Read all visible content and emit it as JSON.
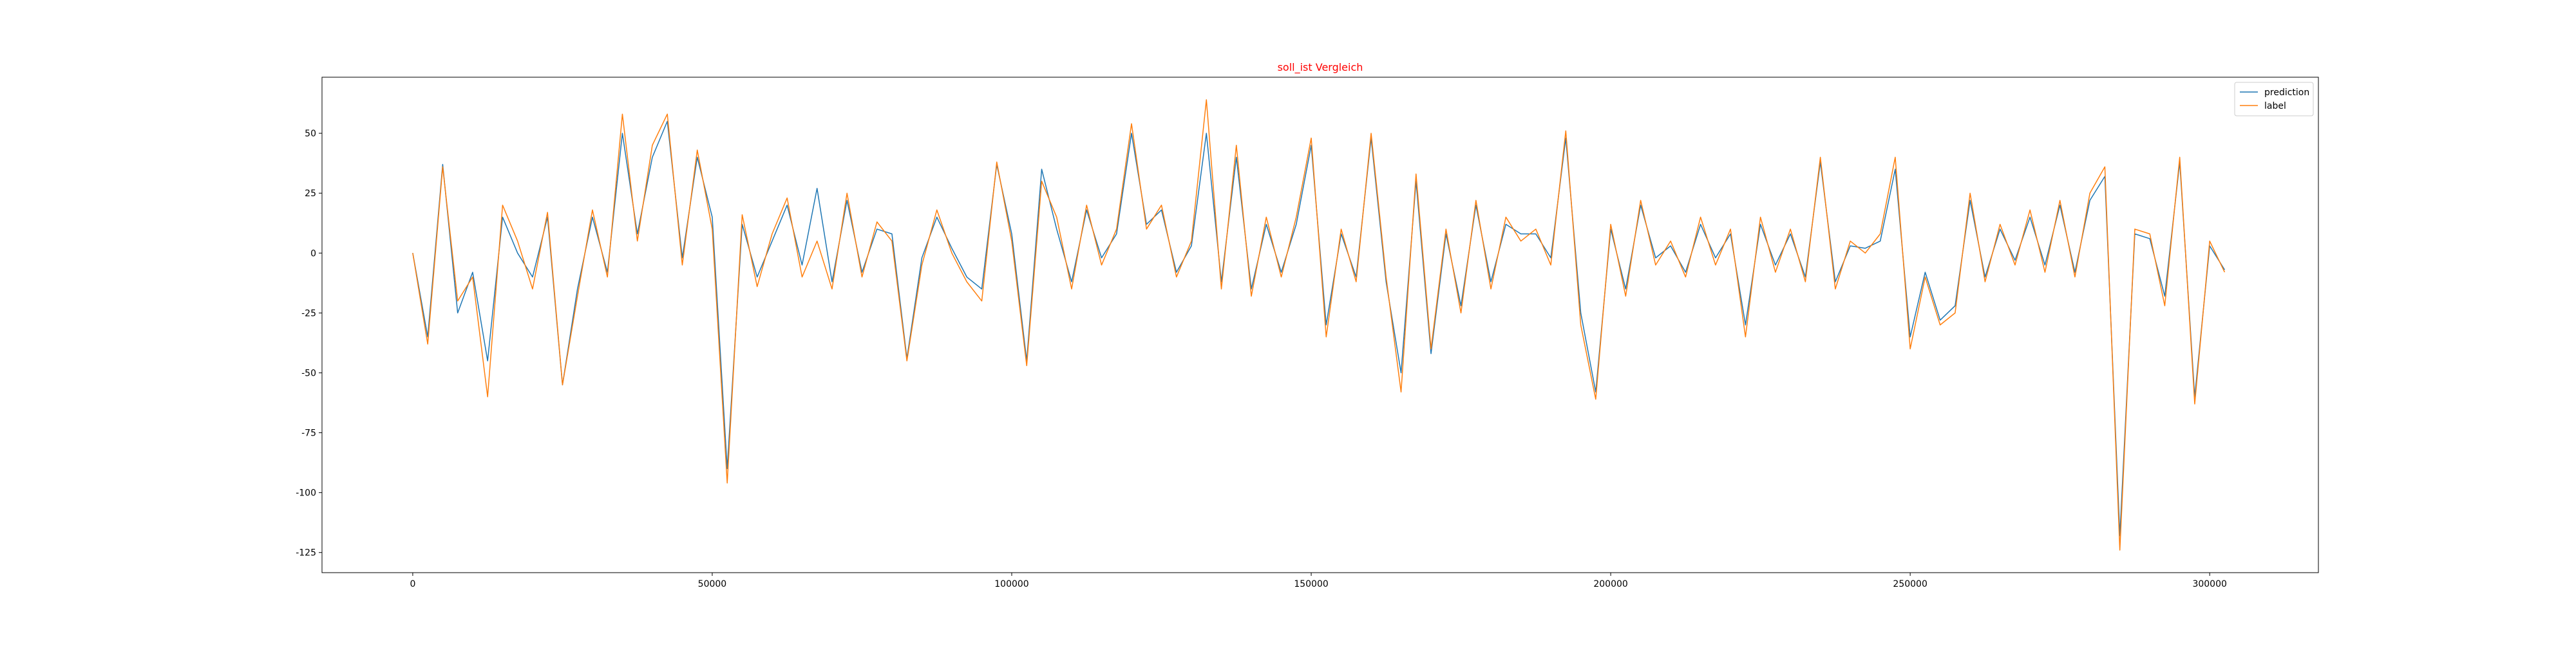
{
  "chart_data": {
    "type": "line",
    "title": "soll_ist Vergleich",
    "title_color": "#ff0000",
    "x": [
      0,
      2500,
      5000,
      7500,
      10000,
      12500,
      15000,
      17500,
      20000,
      22500,
      25000,
      27500,
      30000,
      32500,
      35000,
      37500,
      40000,
      42500,
      45000,
      47500,
      50000,
      52500,
      55000,
      57500,
      60000,
      62500,
      65000,
      67500,
      70000,
      72500,
      75000,
      77500,
      80000,
      82500,
      85000,
      87500,
      90000,
      92500,
      95000,
      97500,
      100000,
      102500,
      105000,
      107500,
      110000,
      112500,
      115000,
      117500,
      120000,
      122500,
      125000,
      127500,
      130000,
      132500,
      135000,
      137500,
      140000,
      142500,
      145000,
      147500,
      150000,
      152500,
      155000,
      157500,
      160000,
      162500,
      165000,
      167500,
      170000,
      172500,
      175000,
      177500,
      180000,
      182500,
      185000,
      187500,
      190000,
      192500,
      195000,
      197500,
      200000,
      202500,
      205000,
      207500,
      210000,
      212500,
      215000,
      217500,
      220000,
      222500,
      225000,
      227500,
      230000,
      232500,
      235000,
      237500,
      240000,
      242500,
      245000,
      247500,
      250000,
      252500,
      255000,
      257500,
      260000,
      262500,
      265000,
      267500,
      270000,
      272500,
      275000,
      277500,
      280000,
      282500,
      285000,
      287500,
      290000,
      292500,
      295000,
      297500,
      300000,
      302500
    ],
    "series": [
      {
        "name": "prediction",
        "color": "#1f77b4",
        "values": [
          0,
          -35,
          37,
          -25,
          -8,
          -45,
          15,
          0,
          -10,
          15,
          -55,
          -15,
          15,
          -8,
          50,
          8,
          40,
          55,
          -2,
          40,
          15,
          -90,
          12,
          -10,
          5,
          20,
          -5,
          27,
          -12,
          22,
          -8,
          10,
          8,
          -44,
          -2,
          15,
          2,
          -10,
          -15,
          37,
          8,
          -45,
          35,
          10,
          -12,
          18,
          -2,
          8,
          50,
          12,
          18,
          -8,
          3,
          50,
          -12,
          40,
          -15,
          12,
          -8,
          12,
          45,
          -30,
          8,
          -10,
          48,
          -12,
          -50,
          30,
          -42,
          8,
          -22,
          20,
          -12,
          12,
          8,
          8,
          -2,
          48,
          -25,
          -58,
          10,
          -15,
          20,
          -2,
          3,
          -8,
          12,
          -2,
          8,
          -30,
          12,
          -5,
          8,
          -10,
          38,
          -12,
          3,
          2,
          5,
          35,
          -35,
          -8,
          -28,
          -22,
          22,
          -10,
          10,
          -3,
          15,
          -5,
          20,
          -8,
          22,
          32,
          -118,
          8,
          6,
          -18,
          38,
          -60,
          3,
          -7
        ]
      },
      {
        "name": "label",
        "color": "#ff7f0e",
        "values": [
          0,
          -38,
          36,
          -20,
          -10,
          -60,
          20,
          5,
          -15,
          17,
          -55,
          -18,
          18,
          -10,
          58,
          5,
          45,
          58,
          -5,
          43,
          10,
          -96,
          16,
          -14,
          8,
          23,
          -10,
          5,
          -15,
          25,
          -10,
          13,
          5,
          -45,
          -5,
          18,
          0,
          -12,
          -20,
          38,
          5,
          -47,
          30,
          15,
          -15,
          20,
          -5,
          10,
          54,
          10,
          20,
          -10,
          5,
          64,
          -15,
          45,
          -18,
          15,
          -10,
          15,
          48,
          -35,
          10,
          -12,
          50,
          -10,
          -58,
          33,
          -40,
          10,
          -25,
          22,
          -15,
          15,
          5,
          10,
          -5,
          51,
          -30,
          -61,
          12,
          -18,
          22,
          -5,
          5,
          -10,
          15,
          -5,
          10,
          -35,
          15,
          -8,
          10,
          -12,
          40,
          -15,
          5,
          0,
          8,
          40,
          -40,
          -10,
          -30,
          -25,
          25,
          -12,
          12,
          -5,
          18,
          -8,
          22,
          -10,
          25,
          36,
          -124,
          10,
          8,
          -22,
          40,
          -63,
          5,
          -8
        ]
      }
    ],
    "xlim": [
      -15150,
      318150
    ],
    "ylim": [
      -133.4,
      73.4
    ],
    "xticks": [
      0,
      50000,
      100000,
      150000,
      200000,
      250000,
      300000
    ],
    "yticks": [
      -125,
      -100,
      -75,
      -50,
      -25,
      0,
      25,
      50
    ],
    "legend": "upper right"
  }
}
